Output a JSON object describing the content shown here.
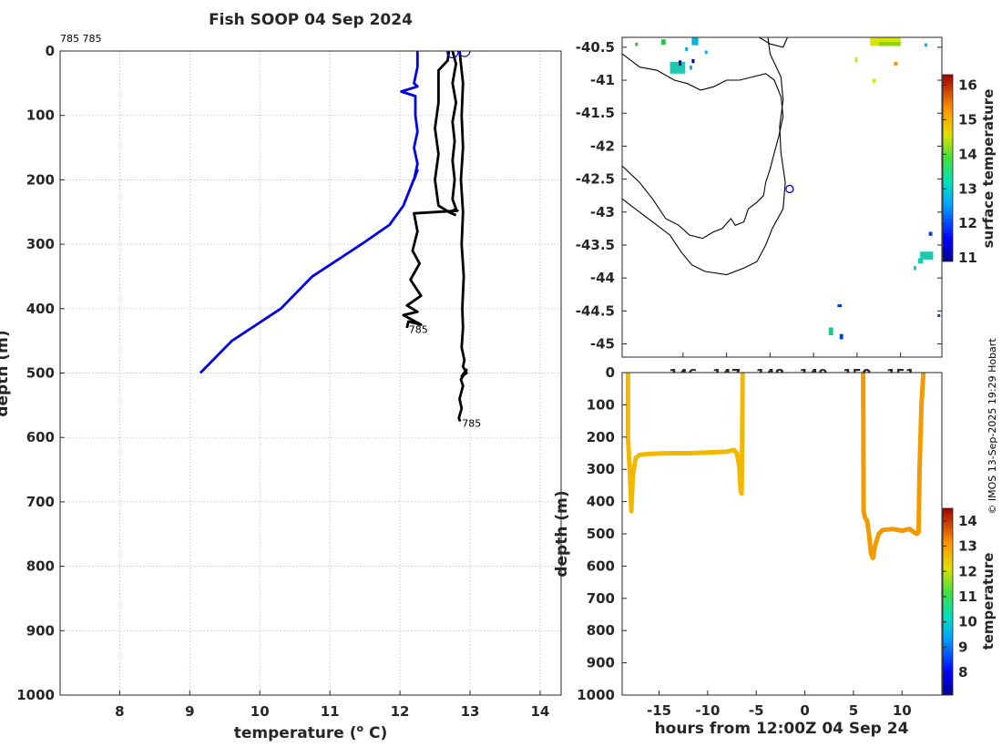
{
  "chart_data": [
    {
      "type": "line",
      "title": "Fish SOOP 04 Sep 2024",
      "xlabel": "temperature (",
      "xlabel_sup": "o",
      "xlabel_unit": " C)",
      "ylabel": "depth (m)",
      "xlim": [
        7.15,
        14.3
      ],
      "ylim": [
        0,
        1000
      ],
      "y_reversed": true,
      "xticks": [
        8,
        9,
        10,
        11,
        12,
        13,
        14
      ],
      "yticks": [
        0,
        100,
        200,
        300,
        400,
        500,
        600,
        700,
        800,
        900,
        1000
      ],
      "grid": true,
      "corner_label": "785 785",
      "series": [
        {
          "color": "#0000e6",
          "x": [
            12.25,
            12.25,
            12.2,
            12.25,
            12.02,
            12.22,
            12.22,
            12.25,
            12.2,
            12.25,
            12.2,
            12.25,
            12.05,
            11.85,
            11.45,
            10.75,
            10.3,
            9.6,
            9.15
          ],
          "y": [
            0,
            25,
            50,
            55,
            63,
            70,
            100,
            125,
            150,
            175,
            200,
            185,
            240,
            270,
            300,
            350,
            400,
            450,
            500
          ]
        },
        {
          "color": "#000000",
          "label": "785",
          "x": [
            12.75,
            12.8,
            12.75,
            12.8,
            12.75,
            12.78,
            12.75,
            12.78,
            12.75,
            12.8,
            12.75,
            12.82,
            12.2,
            12.25,
            12.18,
            12.28,
            12.15,
            12.3,
            12.1,
            12.25,
            12.05,
            12.3,
            12.12,
            12.1
          ],
          "y": [
            0,
            20,
            50,
            80,
            110,
            140,
            170,
            200,
            230,
            245,
            248,
            248,
            252,
            280,
            310,
            330,
            355,
            380,
            395,
            405,
            410,
            425,
            420,
            430
          ]
        },
        {
          "color": "#000000",
          "label": "785",
          "x": [
            12.85,
            12.9,
            12.88,
            12.9,
            12.87,
            12.9,
            12.88,
            12.91,
            12.89,
            12.9,
            12.88,
            12.92,
            12.9,
            12.95,
            12.88,
            12.95,
            12.87,
            12.9,
            12.85,
            12.88,
            12.84,
            12.86
          ],
          "y": [
            0,
            50,
            100,
            150,
            200,
            250,
            300,
            350,
            400,
            430,
            460,
            480,
            490,
            500,
            505,
            495,
            510,
            520,
            540,
            555,
            570,
            575
          ]
        },
        {
          "color": "#000000",
          "x": [
            12.7,
            12.68,
            12.55,
            12.55,
            12.5,
            12.55,
            12.5,
            12.55,
            12.7,
            12.8
          ],
          "y": [
            0,
            15,
            30,
            80,
            120,
            160,
            200,
            240,
            250,
            255
          ]
        }
      ],
      "circles": [
        {
          "x": 12.75,
          "y": 2
        },
        {
          "x": 12.92,
          "y": 0
        }
      ],
      "point_labels": [
        {
          "text": "785",
          "x": 12.1,
          "y": 432
        },
        {
          "text": "785",
          "x": 12.86,
          "y": 578
        }
      ]
    },
    {
      "type": "heatmap",
      "title": "",
      "xlim": [
        144.6,
        151.95
      ],
      "ylim": [
        -45.2,
        -40.35
      ],
      "xticks": [
        146,
        147,
        148,
        149,
        150,
        151
      ],
      "xtick_labels": [
        "146",
        "147",
        "148",
        "149",
        "150",
        "151"
      ],
      "yticks": [
        -40.5,
        -41,
        -41.5,
        -42,
        -42.5,
        -43,
        -43.5,
        -44,
        -44.5,
        -45
      ],
      "ytick_labels": [
        "-40.5",
        "-41",
        "-41.5",
        "-42",
        "-42.5",
        "-43",
        "-43.5",
        "-44",
        "-44.5",
        "-45"
      ],
      "colorbar": {
        "label": "surface temperature",
        "range": [
          10.9,
          16.3
        ],
        "ticks": [
          11,
          12,
          13,
          14,
          15,
          16
        ]
      },
      "ship_position": {
        "lon": 148.45,
        "lat": -42.65
      },
      "sst_patches": [
        {
          "lon": 144.9,
          "lat": -40.43,
          "w": 0.05,
          "h": 0.05,
          "color": "#21c43a"
        },
        {
          "lon": 145.5,
          "lat": -40.38,
          "w": 0.1,
          "h": 0.08,
          "color": "#21c43a"
        },
        {
          "lon": 146.2,
          "lat": -40.35,
          "w": 0.15,
          "h": 0.12,
          "color": "#00b6d8"
        },
        {
          "lon": 146.05,
          "lat": -40.5,
          "w": 0.05,
          "h": 0.06,
          "color": "#00b6d8"
        },
        {
          "lon": 146.5,
          "lat": -40.55,
          "w": 0.05,
          "h": 0.05,
          "color": "#00b6d8"
        },
        {
          "lon": 145.7,
          "lat": -40.72,
          "w": 0.35,
          "h": 0.18,
          "color": "#1fc9b0"
        },
        {
          "lon": 145.9,
          "lat": -40.7,
          "w": 0.05,
          "h": 0.08,
          "color": "#0000a5"
        },
        {
          "lon": 146.2,
          "lat": -40.68,
          "w": 0.06,
          "h": 0.06,
          "color": "#00009d"
        },
        {
          "lon": 146.15,
          "lat": -40.78,
          "w": 0.06,
          "h": 0.06,
          "color": "#00b6d8"
        },
        {
          "lon": 150.3,
          "lat": -40.3,
          "w": 0.7,
          "h": 0.18,
          "color": "#d8e600"
        },
        {
          "lon": 150.5,
          "lat": -40.42,
          "w": 0.5,
          "h": 0.06,
          "color": "#8fd400"
        },
        {
          "lon": 149.85,
          "lat": -40.3,
          "w": 0.05,
          "h": 0.05,
          "color": "#e6e600"
        },
        {
          "lon": 149.95,
          "lat": -40.65,
          "w": 0.05,
          "h": 0.08,
          "color": "#c8ea2a"
        },
        {
          "lon": 150.85,
          "lat": -40.72,
          "w": 0.08,
          "h": 0.06,
          "color": "#f29a00"
        },
        {
          "lon": 151.55,
          "lat": -40.44,
          "w": 0.05,
          "h": 0.05,
          "color": "#00b6d8"
        },
        {
          "lon": 150.35,
          "lat": -40.98,
          "w": 0.08,
          "h": 0.06,
          "color": "#c8ea2a"
        },
        {
          "lon": 151.65,
          "lat": -43.3,
          "w": 0.08,
          "h": 0.06,
          "color": "#003bd6"
        },
        {
          "lon": 151.45,
          "lat": -43.6,
          "w": 0.3,
          "h": 0.12,
          "color": "#1fc9b0"
        },
        {
          "lon": 151.4,
          "lat": -43.7,
          "w": 0.12,
          "h": 0.08,
          "color": "#1fc9b0"
        },
        {
          "lon": 151.3,
          "lat": -43.82,
          "w": 0.05,
          "h": 0.06,
          "color": "#1fc9b0"
        },
        {
          "lon": 149.55,
          "lat": -44.4,
          "w": 0.1,
          "h": 0.04,
          "color": "#003bd6"
        },
        {
          "lon": 149.35,
          "lat": -44.75,
          "w": 0.1,
          "h": 0.12,
          "color": "#1fc98a"
        },
        {
          "lon": 149.6,
          "lat": -44.85,
          "w": 0.08,
          "h": 0.08,
          "color": "#003bd6"
        },
        {
          "lon": 151.85,
          "lat": -44.55,
          "w": 0.06,
          "h": 0.04,
          "color": "#003bd6"
        }
      ],
      "coast_tasmania": [
        [
          144.6,
          -42.8
        ],
        [
          144.9,
          -42.95
        ],
        [
          145.3,
          -43.15
        ],
        [
          145.7,
          -43.35
        ],
        [
          145.95,
          -43.6
        ],
        [
          146.2,
          -43.8
        ],
        [
          146.5,
          -43.9
        ],
        [
          147.0,
          -43.95
        ],
        [
          147.4,
          -43.85
        ],
        [
          147.7,
          -43.75
        ],
        [
          147.9,
          -43.5
        ],
        [
          148.05,
          -43.25
        ],
        [
          148.3,
          -42.95
        ],
        [
          148.35,
          -42.55
        ],
        [
          148.25,
          -42.1
        ],
        [
          148.22,
          -41.7
        ],
        [
          148.3,
          -41.3
        ],
        [
          148.25,
          -40.95
        ],
        [
          148.0,
          -40.6
        ],
        [
          147.95,
          -40.35
        ]
      ],
      "coast_inner": [
        [
          144.6,
          -42.3
        ],
        [
          145.0,
          -42.55
        ],
        [
          145.3,
          -42.8
        ],
        [
          145.6,
          -43.1
        ],
        [
          145.9,
          -43.2
        ],
        [
          146.15,
          -43.35
        ],
        [
          146.45,
          -43.4
        ],
        [
          146.7,
          -43.3
        ],
        [
          146.9,
          -43.25
        ],
        [
          147.1,
          -43.1
        ],
        [
          147.2,
          -43.2
        ],
        [
          147.4,
          -43.15
        ],
        [
          147.5,
          -42.95
        ],
        [
          147.7,
          -42.85
        ],
        [
          147.85,
          -42.75
        ],
        [
          147.9,
          -42.55
        ],
        [
          148.0,
          -42.35
        ],
        [
          148.1,
          -42.1
        ],
        [
          148.2,
          -41.85
        ],
        [
          148.3,
          -41.55
        ],
        [
          148.25,
          -41.25
        ],
        [
          148.1,
          -41.0
        ],
        [
          147.9,
          -40.9
        ],
        [
          147.6,
          -40.95
        ],
        [
          147.3,
          -41.0
        ],
        [
          147.0,
          -41.0
        ],
        [
          146.7,
          -41.1
        ],
        [
          146.4,
          -41.15
        ],
        [
          146.1,
          -41.05
        ],
        [
          145.8,
          -41.0
        ],
        [
          145.4,
          -40.85
        ],
        [
          145.0,
          -40.8
        ],
        [
          144.8,
          -40.7
        ],
        [
          144.6,
          -40.6
        ]
      ],
      "coast_bass_islands": [
        [
          147.75,
          -40.35
        ],
        [
          148.0,
          -40.45
        ],
        [
          148.3,
          -40.5
        ],
        [
          148.4,
          -40.35
        ]
      ]
    },
    {
      "type": "scatter",
      "title": "",
      "xlabel": "hours from 12:00Z 04 Sep 24",
      "ylabel": "depth (m)",
      "xlim": [
        -18.8,
        14.1
      ],
      "ylim": [
        0,
        1000
      ],
      "y_reversed": true,
      "xticks": [
        -15,
        -10,
        -5,
        0,
        5,
        10
      ],
      "xtick_labels": [
        "-15",
        "-10",
        "-5",
        "0",
        "5",
        "10"
      ],
      "yticks": [
        0,
        100,
        200,
        300,
        400,
        500,
        600,
        700,
        800,
        900,
        1000
      ],
      "colorbar": {
        "label": "temperature",
        "range": [
          7.1,
          14.5
        ],
        "ticks": [
          8,
          9,
          10,
          11,
          12,
          13,
          14
        ]
      },
      "series": [
        {
          "color": "#f2b800",
          "x": [
            -18.2,
            -18.2,
            -17.95,
            -17.85,
            -17.8,
            -17.7,
            -17.6,
            -17.4,
            -17.0,
            -16.0,
            -14.0,
            -12.0,
            -10.0,
            -8.0,
            -7.3,
            -7.0,
            -6.75,
            -6.6,
            -6.5,
            -6.45,
            -6.4
          ],
          "y": [
            0,
            200,
            350,
            430,
            380,
            320,
            300,
            265,
            255,
            252,
            250,
            250,
            248,
            245,
            240,
            250,
            290,
            370,
            375,
            200,
            0
          ]
        },
        {
          "color": "#f29a00",
          "x": [
            6.0,
            6.05,
            6.2,
            6.4,
            6.6,
            6.8,
            7.0,
            7.2,
            7.6,
            8.0,
            9.0,
            10.0,
            10.8,
            11.2,
            11.5,
            11.7,
            11.8,
            12.0,
            12.2
          ],
          "y": [
            0,
            430,
            450,
            460,
            500,
            560,
            575,
            540,
            500,
            488,
            485,
            490,
            485,
            495,
            500,
            495,
            300,
            100,
            0
          ]
        }
      ]
    }
  ],
  "credit": "© IMOS 13-Sep-2025 19:29 Hobart"
}
